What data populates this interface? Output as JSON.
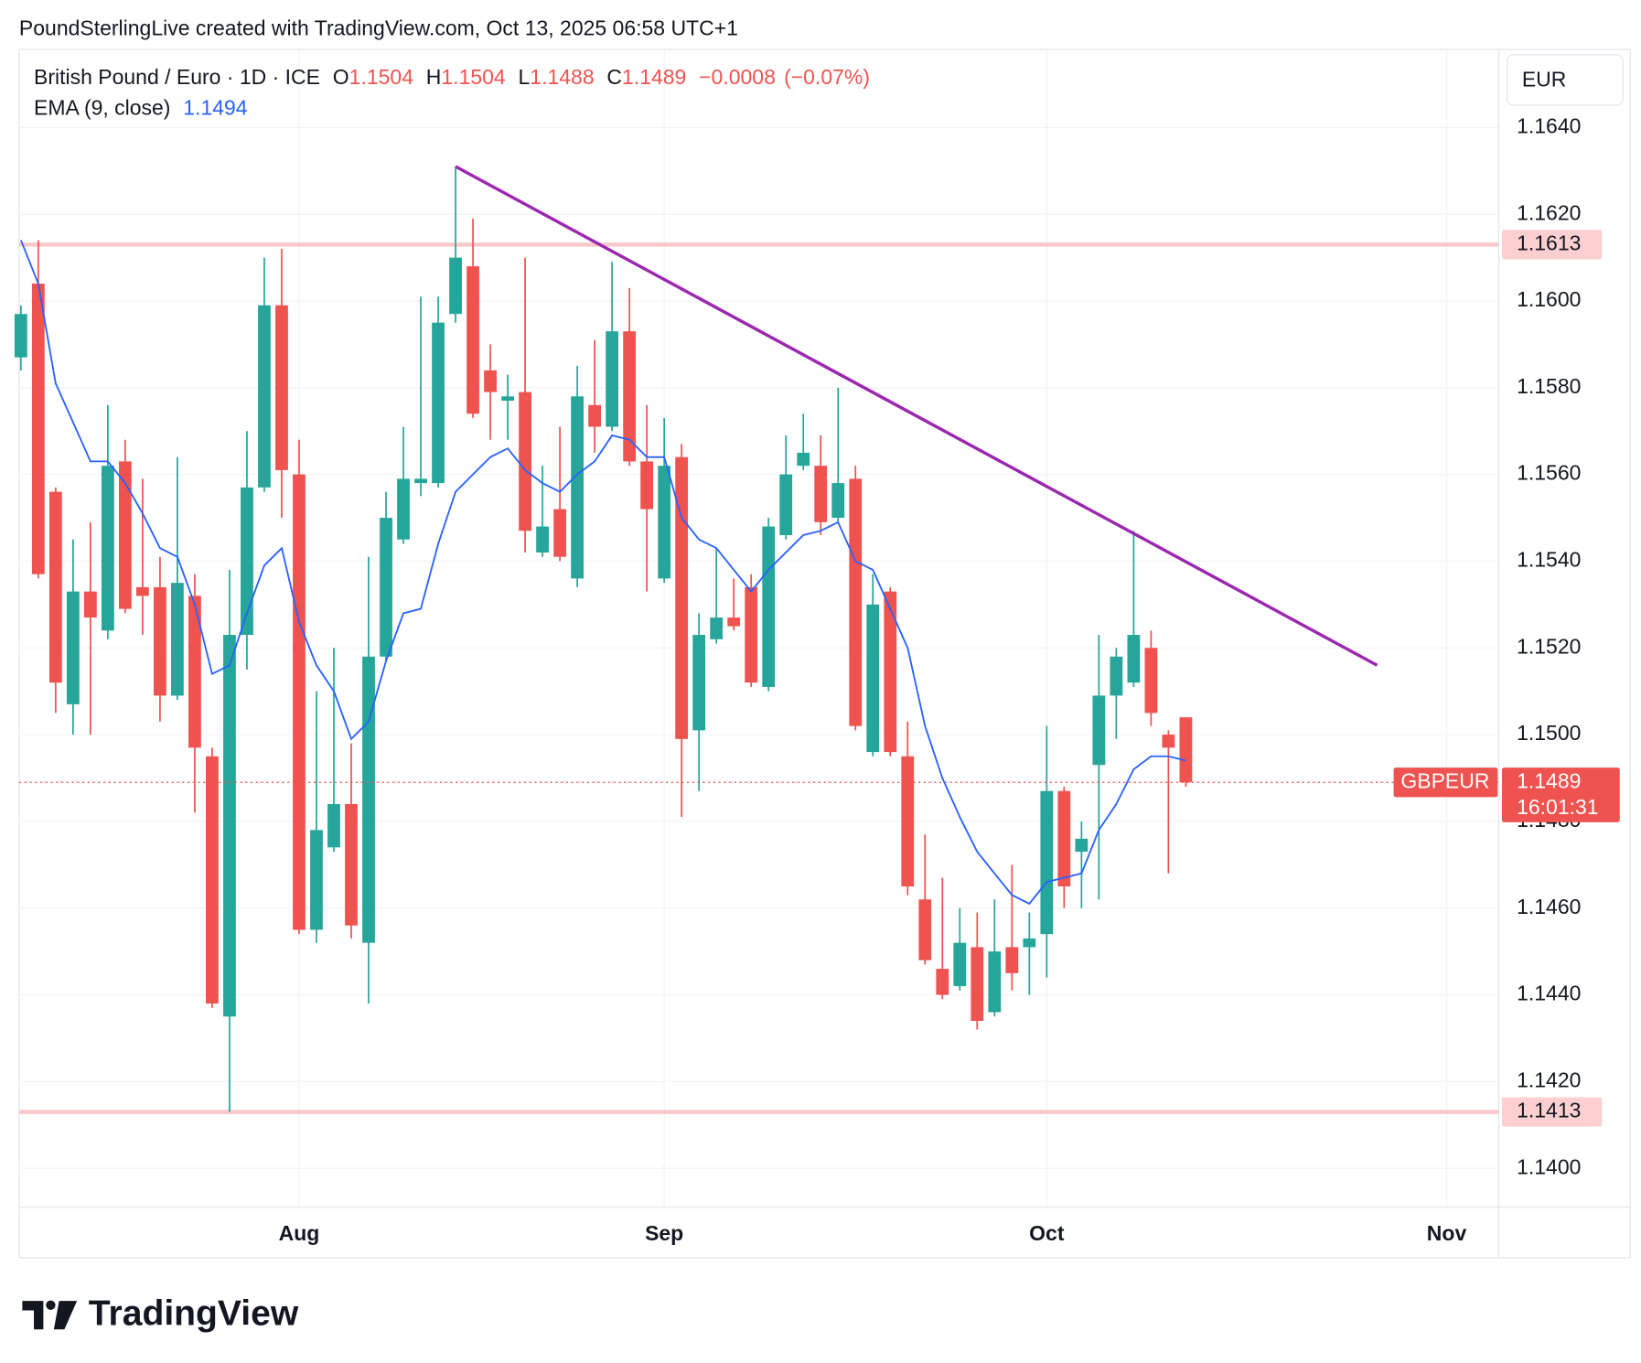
{
  "header": "PoundSterlingLive created with TradingView.com, Oct 13, 2025 06:58 UTC+1",
  "logo": "TradingView",
  "chart_data": {
    "type": "candlestick",
    "symbol": "British Pound / Euro · 1D · ICE",
    "currency": "EUR",
    "ohlc_legend": [
      {
        "prefix": "O",
        "value": 1.1504,
        "label": "1.1504"
      },
      {
        "prefix": "H",
        "value": 1.1504,
        "label": "1.1504"
      },
      {
        "prefix": "L",
        "value": 1.1488,
        "label": "1.1488"
      },
      {
        "prefix": "C",
        "value": 1.1489,
        "label": "1.1489"
      }
    ],
    "change": {
      "value": -0.0008,
      "label": "−0.0008"
    },
    "change_pct": {
      "value": -0.07,
      "label": "(−0.07%)"
    },
    "colors": {
      "up": "#26a69a",
      "down": "#ef5350"
    },
    "ohlc": [
      [
        1.1587,
        1.1599,
        1.1584,
        1.1597
      ],
      [
        1.1604,
        1.1614,
        1.1536,
        1.1537
      ],
      [
        1.1556,
        1.1557,
        1.1505,
        1.1512
      ],
      [
        1.1507,
        1.1545,
        1.15,
        1.1533
      ],
      [
        1.1533,
        1.1549,
        1.15,
        1.1527
      ],
      [
        1.1524,
        1.1576,
        1.1522,
        1.1562
      ],
      [
        1.1563,
        1.1568,
        1.1528,
        1.1529
      ],
      [
        1.1534,
        1.1559,
        1.1523,
        1.1532
      ],
      [
        1.1534,
        1.1541,
        1.1503,
        1.1509
      ],
      [
        1.1509,
        1.1564,
        1.1508,
        1.1535
      ],
      [
        1.1532,
        1.1537,
        1.1482,
        1.1497
      ],
      [
        1.1495,
        1.1497,
        1.1437,
        1.1438
      ],
      [
        1.1435,
        1.1538,
        1.1413,
        1.1523
      ],
      [
        1.1523,
        1.157,
        1.1515,
        1.1557
      ],
      [
        1.1557,
        1.161,
        1.1556,
        1.1599
      ],
      [
        1.1599,
        1.1612,
        1.155,
        1.1561
      ],
      [
        1.156,
        1.1568,
        1.1454,
        1.1455
      ],
      [
        1.1455,
        1.151,
        1.1452,
        1.1478
      ],
      [
        1.1474,
        1.152,
        1.1473,
        1.1484
      ],
      [
        1.1484,
        1.1498,
        1.1453,
        1.1456
      ],
      [
        1.1452,
        1.1541,
        1.1438,
        1.1518
      ],
      [
        1.1518,
        1.1556,
        1.1517,
        1.155
      ],
      [
        1.1545,
        1.1571,
        1.1544,
        1.1559
      ],
      [
        1.1558,
        1.1601,
        1.1555,
        1.1559
      ],
      [
        1.1558,
        1.1601,
        1.1557,
        1.1595
      ],
      [
        1.1597,
        1.1631,
        1.1595,
        1.161
      ],
      [
        1.1608,
        1.1619,
        1.1573,
        1.1574
      ],
      [
        1.1584,
        1.159,
        1.1568,
        1.1579
      ],
      [
        1.1577,
        1.1583,
        1.1568,
        1.1578
      ],
      [
        1.1579,
        1.161,
        1.1542,
        1.1547
      ],
      [
        1.1542,
        1.1562,
        1.1541,
        1.1548
      ],
      [
        1.1552,
        1.1571,
        1.154,
        1.1541
      ],
      [
        1.1536,
        1.1585,
        1.1534,
        1.1578
      ],
      [
        1.1576,
        1.1591,
        1.1565,
        1.1571
      ],
      [
        1.1571,
        1.1609,
        1.157,
        1.1593
      ],
      [
        1.1593,
        1.1603,
        1.1562,
        1.1563
      ],
      [
        1.1563,
        1.1576,
        1.1533,
        1.1552
      ],
      [
        1.1536,
        1.1573,
        1.1535,
        1.1562
      ],
      [
        1.1564,
        1.1567,
        1.1481,
        1.1499
      ],
      [
        1.1501,
        1.1528,
        1.1487,
        1.1523
      ],
      [
        1.1522,
        1.1543,
        1.1521,
        1.1527
      ],
      [
        1.1527,
        1.1536,
        1.1524,
        1.1525
      ],
      [
        1.1534,
        1.1537,
        1.1511,
        1.1512
      ],
      [
        1.1511,
        1.155,
        1.151,
        1.1548
      ],
      [
        1.1546,
        1.1569,
        1.1545,
        1.156
      ],
      [
        1.1562,
        1.1574,
        1.1561,
        1.1565
      ],
      [
        1.1562,
        1.1569,
        1.1546,
        1.1549
      ],
      [
        1.155,
        1.158,
        1.1549,
        1.1558
      ],
      [
        1.1559,
        1.1562,
        1.1501,
        1.1502
      ],
      [
        1.1496,
        1.1537,
        1.1495,
        1.153
      ],
      [
        1.1533,
        1.1534,
        1.1495,
        1.1496
      ],
      [
        1.1495,
        1.1503,
        1.1463,
        1.1465
      ],
      [
        1.1462,
        1.1477,
        1.1447,
        1.1448
      ],
      [
        1.1446,
        1.1467,
        1.1439,
        1.144
      ],
      [
        1.1442,
        1.146,
        1.1441,
        1.1452
      ],
      [
        1.1451,
        1.1459,
        1.1432,
        1.1434
      ],
      [
        1.1436,
        1.1462,
        1.1435,
        1.145
      ],
      [
        1.1451,
        1.147,
        1.1441,
        1.1445
      ],
      [
        1.1451,
        1.1459,
        1.144,
        1.1453
      ],
      [
        1.1454,
        1.1502,
        1.1444,
        1.1487
      ],
      [
        1.1487,
        1.1488,
        1.146,
        1.1465
      ],
      [
        1.1473,
        1.148,
        1.146,
        1.1476
      ],
      [
        1.1493,
        1.1523,
        1.1462,
        1.1509
      ],
      [
        1.1509,
        1.152,
        1.1499,
        1.1518
      ],
      [
        1.1512,
        1.1547,
        1.1511,
        1.1523
      ],
      [
        1.152,
        1.1524,
        1.1502,
        1.1505
      ],
      [
        1.15,
        1.1501,
        1.1468,
        1.1497
      ],
      [
        1.1504,
        1.1504,
        1.1488,
        1.1489
      ]
    ],
    "ema": {
      "name": "EMA (9, close)",
      "color": "#2962ff",
      "values": [
        1.1614,
        1.1604,
        1.1581,
        1.1572,
        1.1563,
        1.1563,
        1.1558,
        1.1551,
        1.1543,
        1.1541,
        1.153,
        1.1514,
        1.1516,
        1.1528,
        1.1539,
        1.1543,
        1.1526,
        1.1516,
        1.151,
        1.1499,
        1.1503,
        1.1517,
        1.1528,
        1.1529,
        1.1544,
        1.1556,
        1.156,
        1.1564,
        1.1566,
        1.1561,
        1.1558,
        1.1556,
        1.156,
        1.1563,
        1.1569,
        1.1568,
        1.1564,
        1.1564,
        1.155,
        1.1545,
        1.1543,
        1.1538,
        1.1533,
        1.1538,
        1.1542,
        1.1546,
        1.1547,
        1.1549,
        1.154,
        1.1538,
        1.1529,
        1.152,
        1.1502,
        1.149,
        1.1481,
        1.1473,
        1.1468,
        1.1463,
        1.1461,
        1.1466,
        1.1467,
        1.1468,
        1.1478,
        1.1484,
        1.1492,
        1.1495,
        1.1495,
        1.1494
      ],
      "last": {
        "value": 1.1494,
        "label": "1.1494"
      }
    },
    "levels": [
      {
        "value": 1.1613,
        "label": "1.1613"
      },
      {
        "value": 1.1413,
        "label": "1.1413"
      }
    ],
    "trendline": {
      "color": "#9c27b0",
      "x": [
        25,
        78
      ],
      "y": [
        1.1631,
        1.1516
      ]
    },
    "last_price": {
      "symbol": "GBPEUR",
      "value": 1.1489,
      "label": "1.1489",
      "countdown": "16:01:31"
    },
    "xlim": [
      -0.1,
      85
    ],
    "xticks": [
      {
        "value": 16,
        "label": "Aug"
      },
      {
        "value": 37,
        "label": "Sep"
      },
      {
        "value": 59,
        "label": "Oct"
      },
      {
        "value": 82,
        "label": "Nov"
      }
    ],
    "ylim": [
      1.1391,
      1.1658
    ],
    "yticks": [
      {
        "value": 1.14,
        "label": "1.1400"
      },
      {
        "value": 1.142,
        "label": "1.1420"
      },
      {
        "value": 1.144,
        "label": "1.1440"
      },
      {
        "value": 1.146,
        "label": "1.1460"
      },
      {
        "value": 1.148,
        "label": "1.1480"
      },
      {
        "value": 1.15,
        "label": "1.1500"
      },
      {
        "value": 1.152,
        "label": "1.1520"
      },
      {
        "value": 1.154,
        "label": "1.1540"
      },
      {
        "value": 1.156,
        "label": "1.1560"
      },
      {
        "value": 1.158,
        "label": "1.1580"
      },
      {
        "value": 1.16,
        "label": "1.1600"
      },
      {
        "value": 1.162,
        "label": "1.1620"
      },
      {
        "value": 1.164,
        "label": "1.1640"
      }
    ],
    "grid": true
  }
}
